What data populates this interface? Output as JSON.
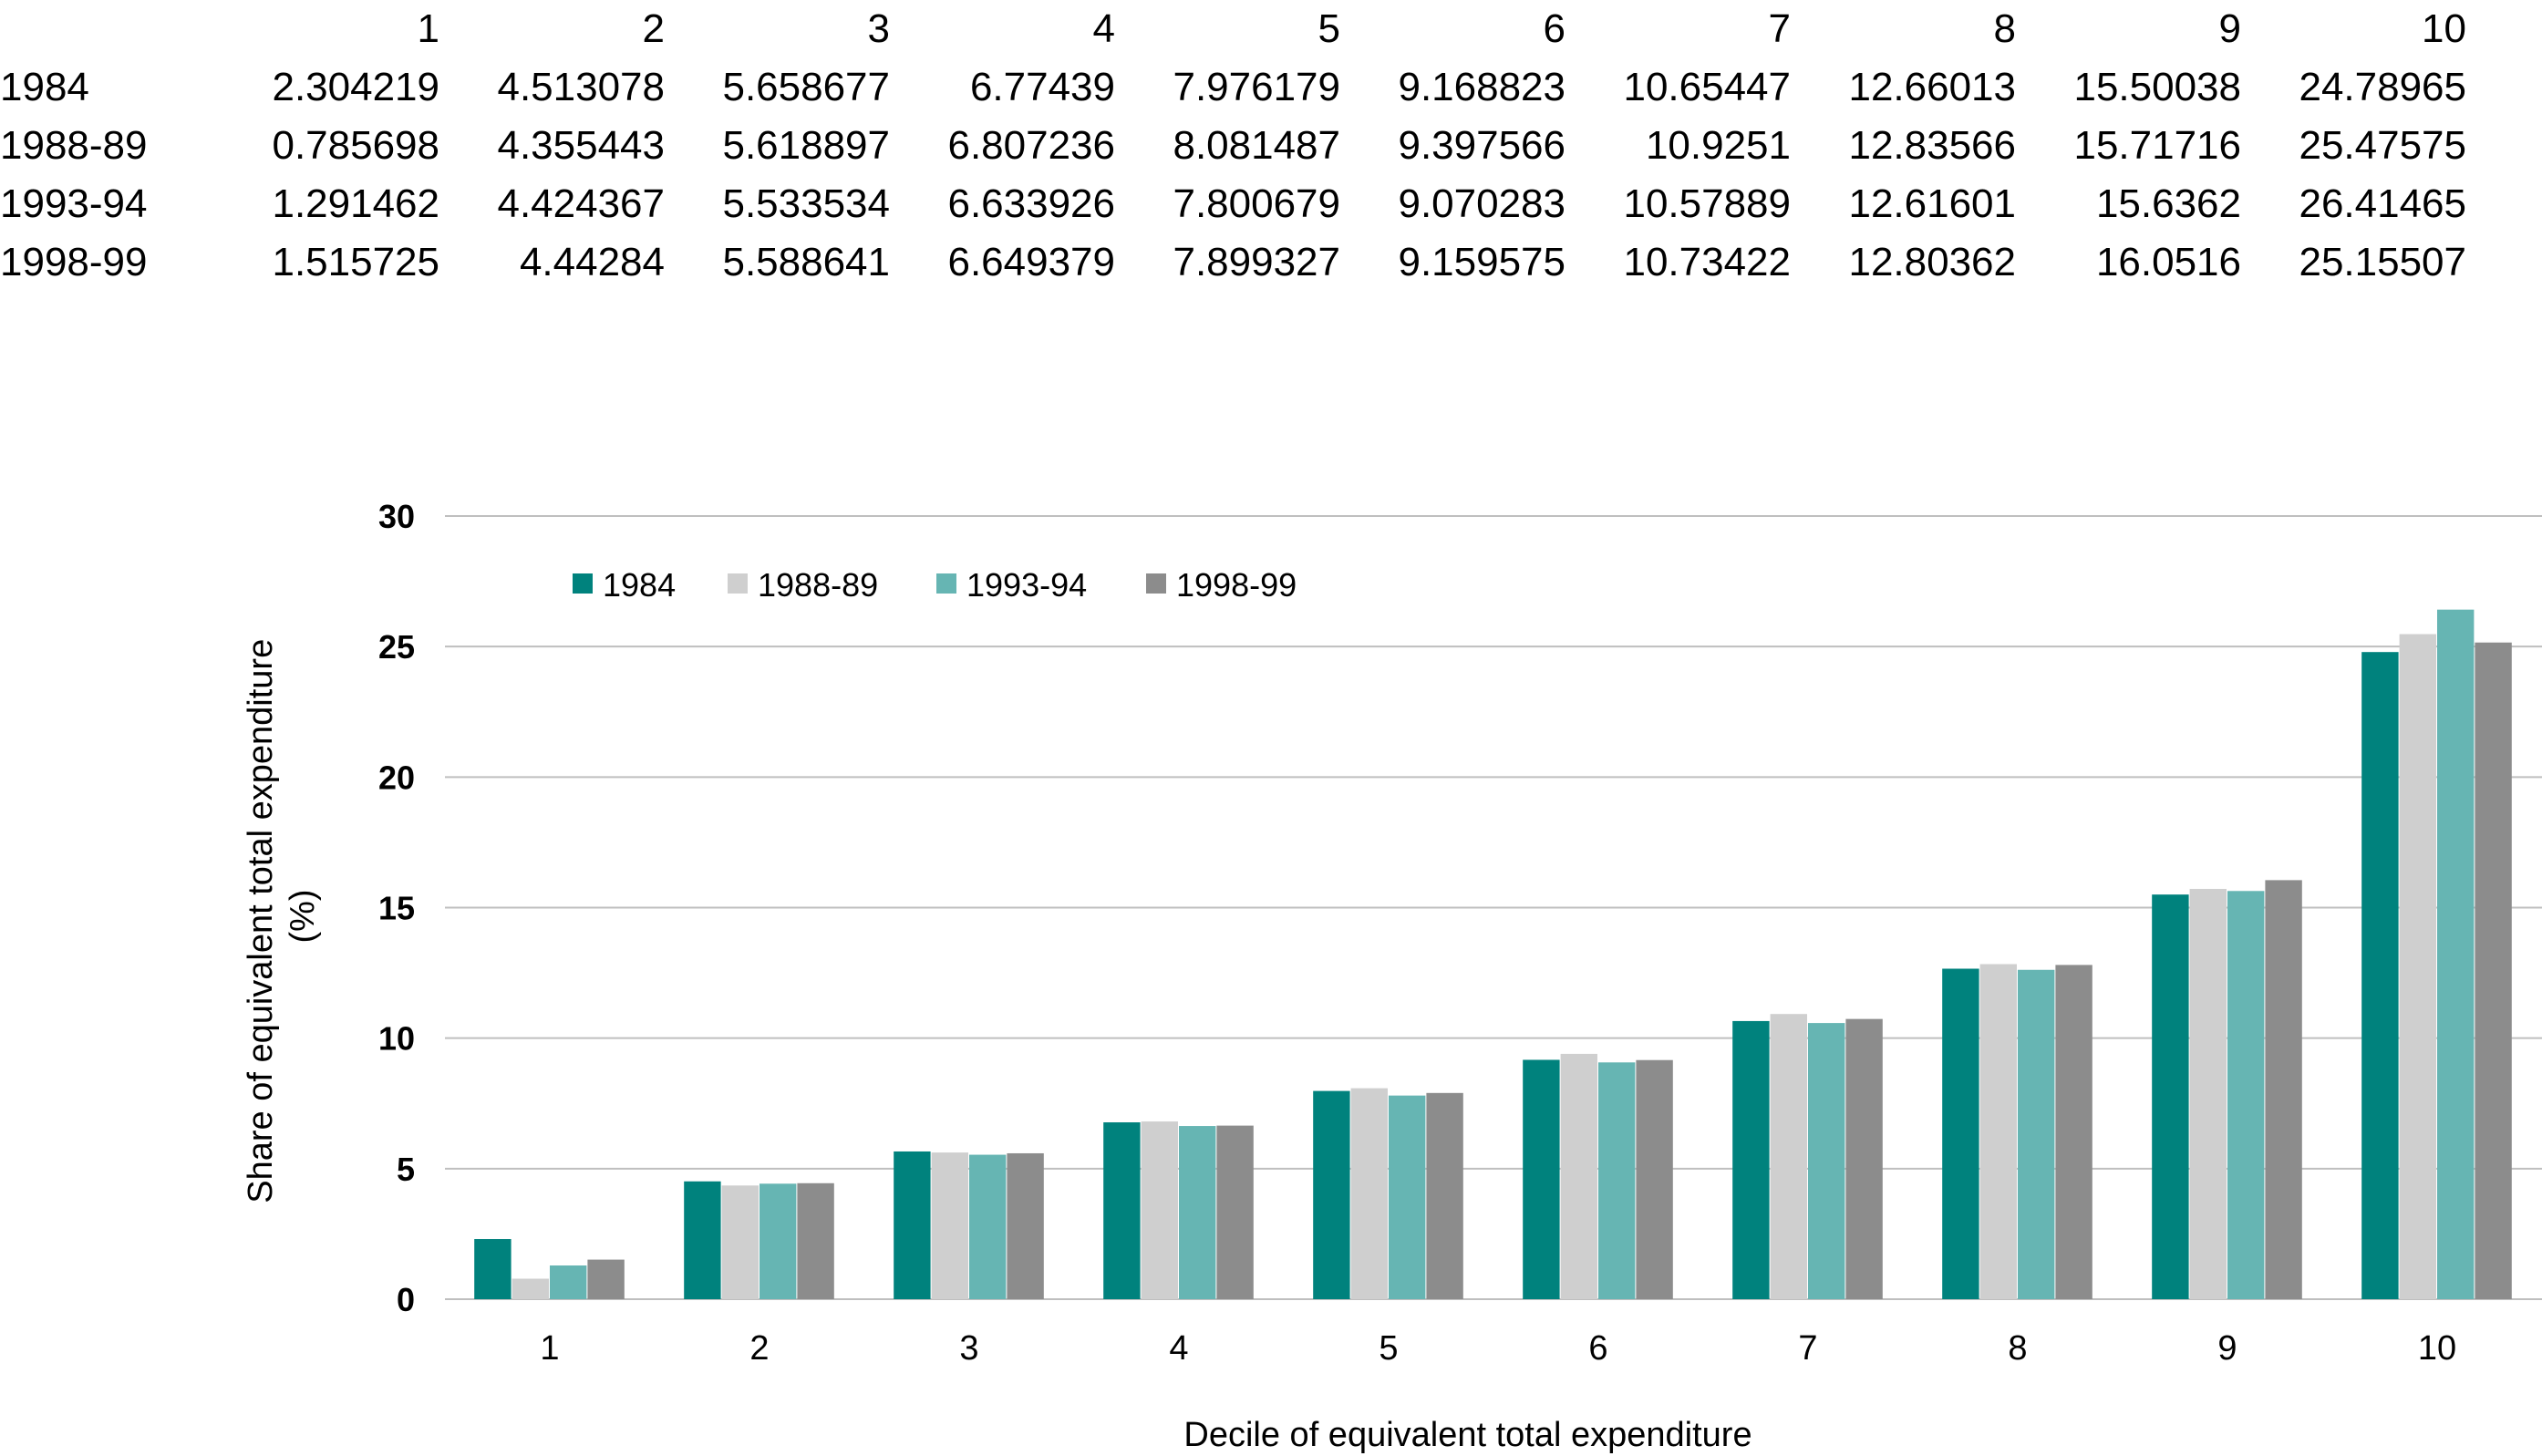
{
  "table": {
    "columns": [
      "1",
      "2",
      "3",
      "4",
      "5",
      "6",
      "7",
      "8",
      "9",
      "10"
    ],
    "rows": [
      {
        "label": "1984",
        "values": [
          "2.304219",
          "4.513078",
          "5.658677",
          "6.77439",
          "7.976179",
          "9.168823",
          "10.65447",
          "12.66013",
          "15.50038",
          "24.78965"
        ]
      },
      {
        "label": "1988-89",
        "values": [
          "0.785698",
          "4.355443",
          "5.618897",
          "6.807236",
          "8.081487",
          "9.397566",
          "10.9251",
          "12.83566",
          "15.71716",
          "25.47575"
        ]
      },
      {
        "label": "1993-94",
        "values": [
          "1.291462",
          "4.424367",
          "5.533534",
          "6.633926",
          "7.800679",
          "9.070283",
          "10.57889",
          "12.61601",
          "15.6362",
          "26.41465"
        ]
      },
      {
        "label": "1998-99",
        "values": [
          "1.515725",
          "4.44284",
          "5.588641",
          "6.649379",
          "7.899327",
          "9.159575",
          "10.73422",
          "12.80362",
          "16.0516",
          "25.15507"
        ]
      }
    ]
  },
  "chart_data": {
    "type": "bar",
    "categories": [
      "1",
      "2",
      "3",
      "4",
      "5",
      "6",
      "7",
      "8",
      "9",
      "10"
    ],
    "series": [
      {
        "name": "1984",
        "color": "#00827D",
        "values": [
          2.304219,
          4.513078,
          5.658677,
          6.77439,
          7.976179,
          9.168823,
          10.65447,
          12.66013,
          15.50038,
          24.78965
        ]
      },
      {
        "name": "1988-89",
        "color": "#CFCFCF",
        "values": [
          0.785698,
          4.355443,
          5.618897,
          6.807236,
          8.081487,
          9.397566,
          10.9251,
          12.83566,
          15.71716,
          25.47575
        ]
      },
      {
        "name": "1993-94",
        "color": "#66B5B3",
        "values": [
          1.291462,
          4.424367,
          5.533534,
          6.633926,
          7.800679,
          9.070283,
          10.57889,
          12.61601,
          15.6362,
          26.41465
        ]
      },
      {
        "name": "1998-99",
        "color": "#8C8C8C",
        "values": [
          1.515725,
          4.44284,
          5.588641,
          6.649379,
          7.899327,
          9.159575,
          10.73422,
          12.80362,
          16.0516,
          25.15507
        ]
      }
    ],
    "xlabel": "Decile of equivalent total expenditure",
    "ylabel_lines": [
      "Share of equivalent total expenditure",
      "(%)"
    ],
    "ylim": [
      0,
      30
    ],
    "yticks": [
      0,
      5,
      10,
      15,
      20,
      25,
      30
    ],
    "grid": true,
    "gridline_color": "#BFBFBF",
    "legend_position": "top-left"
  }
}
